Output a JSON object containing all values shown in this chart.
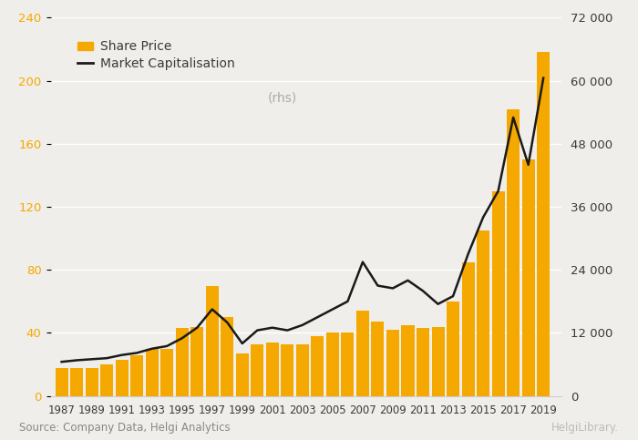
{
  "years": [
    1987,
    1988,
    1989,
    1990,
    1991,
    1992,
    1993,
    1994,
    1995,
    1996,
    1997,
    1998,
    1999,
    2000,
    2001,
    2002,
    2003,
    2004,
    2005,
    2006,
    2007,
    2008,
    2009,
    2010,
    2011,
    2012,
    2013,
    2014,
    2015,
    2016,
    2017,
    2018,
    2019
  ],
  "share_price": [
    18,
    18,
    18,
    20,
    23,
    26,
    30,
    30,
    43,
    44,
    70,
    50,
    27,
    33,
    34,
    33,
    33,
    38,
    40,
    40,
    54,
    47,
    42,
    45,
    43,
    44,
    60,
    85,
    105,
    130,
    182,
    150,
    218
  ],
  "market_cap": [
    6500,
    6800,
    7000,
    7200,
    7800,
    8200,
    9000,
    9500,
    11000,
    13000,
    16500,
    14000,
    10000,
    12500,
    13000,
    12500,
    13500,
    15000,
    16500,
    18000,
    25500,
    21000,
    20500,
    22000,
    20000,
    17500,
    19000,
    27000,
    34000,
    39000,
    53000,
    44000,
    60500
  ],
  "bar_color": "#F5A800",
  "line_color": "#1a1a1a",
  "bg_color": "#F0EEEA",
  "ylim_left": [
    0,
    240
  ],
  "ylim_right": [
    0,
    72000
  ],
  "yticks_left": [
    0,
    40,
    80,
    120,
    160,
    200,
    240
  ],
  "yticks_right": [
    0,
    12000,
    24000,
    36000,
    48000,
    60000,
    72000
  ],
  "ytick_labels_right": [
    "0",
    "12 000",
    "24 000",
    "36 000",
    "48 000",
    "60 000",
    "72 000"
  ],
  "xtick_years": [
    1987,
    1989,
    1991,
    1993,
    1995,
    1997,
    1999,
    2001,
    2003,
    2005,
    2007,
    2009,
    2011,
    2013,
    2015,
    2017,
    2019
  ],
  "xtick_labels": [
    "1987",
    "1989",
    "1991",
    "1993",
    "1995",
    "1997",
    "1999",
    "2001",
    "2003",
    "2005",
    "2007",
    "2009",
    "2011",
    "2013",
    "2015",
    "2017",
    "2019"
  ],
  "legend_share_price": "Share Price",
  "legend_market_cap_main": "Market Capitalisation ",
  "legend_market_cap_rhs": "(rhs)",
  "source_text": "Source: Company Data, Helgi Analytics",
  "helgi_text": "HelgiLibrary.",
  "left_tick_color": "#F5A800",
  "right_tick_color": "#3a3a3a",
  "grid_color": "#FFFFFF",
  "text_color": "#3a3a3a",
  "rhs_color": "#AAAAAA"
}
